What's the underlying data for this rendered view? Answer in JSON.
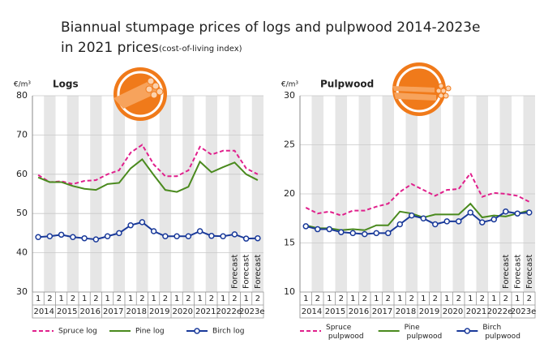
{
  "header": {
    "title": "Biannual stumpage prices of logs and pulpwood 2014-2023e",
    "title_line2": "in 2021 prices",
    "subtitle": "(cost-of-living index)"
  },
  "chart_data": [
    {
      "type": "line",
      "title": "Logs",
      "y_label": "€/m³",
      "categories": [
        "1",
        "2",
        "1",
        "2",
        "1",
        "2",
        "1",
        "2",
        "1",
        "2",
        "1",
        "2",
        "1",
        "2",
        "1",
        "2",
        "1",
        "2",
        "1",
        "2"
      ],
      "category_groups": [
        "2014",
        "2015",
        "2016",
        "2017",
        "2018",
        "2019",
        "2020",
        "2021",
        "2022e",
        "2023e"
      ],
      "category_notes": [
        null,
        null,
        null,
        null,
        null,
        null,
        null,
        null,
        null,
        null,
        null,
        null,
        null,
        null,
        null,
        null,
        null,
        "Forecast",
        "Forecast",
        "Forecast"
      ],
      "ylim": [
        30,
        80
      ],
      "yticks": [
        30,
        40,
        50,
        60,
        70,
        80
      ],
      "grid": true,
      "series": [
        {
          "name": "Spruce log",
          "color": "#e0208c",
          "style": "dashed",
          "values": [
            59.8,
            58.0,
            58.2,
            57.5,
            58.3,
            58.5,
            60.0,
            61.0,
            65.5,
            67.5,
            62.5,
            59.5,
            59.5,
            61.0,
            67.0,
            65.0,
            66.0,
            66.0,
            61.5,
            60.0
          ]
        },
        {
          "name": "Pine log",
          "color": "#4a8a1e",
          "style": "solid",
          "values": [
            59.2,
            58.0,
            58.0,
            57.0,
            56.3,
            56.0,
            57.5,
            57.8,
            61.5,
            63.8,
            59.8,
            56.0,
            55.5,
            56.8,
            63.2,
            60.5,
            61.8,
            63.0,
            60.0,
            58.5
          ]
        },
        {
          "name": "Birch log",
          "color": "#1a3a9a",
          "style": "markers",
          "values": [
            44.0,
            44.2,
            44.6,
            44.0,
            43.7,
            43.4,
            44.2,
            45.0,
            47.0,
            47.8,
            45.5,
            44.2,
            44.2,
            44.2,
            45.5,
            44.3,
            44.2,
            44.7,
            43.6,
            43.7
          ]
        }
      ]
    },
    {
      "type": "line",
      "title": "Pulpwood",
      "y_label": "€/m³",
      "categories": [
        "1",
        "2",
        "1",
        "2",
        "1",
        "2",
        "1",
        "2",
        "1",
        "2",
        "1",
        "2",
        "1",
        "2",
        "1",
        "2",
        "1",
        "2",
        "1",
        "2"
      ],
      "category_groups": [
        "2014",
        "2015",
        "2016",
        "2017",
        "2018",
        "2019",
        "2020",
        "2021",
        "2022e",
        "2023e"
      ],
      "category_notes": [
        null,
        null,
        null,
        null,
        null,
        null,
        null,
        null,
        null,
        null,
        null,
        null,
        null,
        null,
        null,
        null,
        null,
        "Forecast",
        "Forecast",
        "Forecast"
      ],
      "ylim": [
        10,
        30
      ],
      "yticks": [
        10,
        15,
        20,
        25,
        30
      ],
      "grid": true,
      "series": [
        {
          "name": "Spruce pulpwood",
          "color": "#e0208c",
          "style": "dashed",
          "values": [
            18.6,
            18.0,
            18.2,
            17.8,
            18.3,
            18.3,
            18.7,
            19.0,
            20.2,
            21.0,
            20.4,
            19.8,
            20.4,
            20.5,
            22.1,
            19.7,
            20.1,
            20.0,
            19.8,
            19.2
          ]
        },
        {
          "name": "Pine pulpwood",
          "color": "#4a8a1e",
          "style": "solid",
          "values": [
            16.8,
            16.5,
            16.5,
            16.3,
            16.4,
            16.3,
            16.8,
            16.8,
            18.2,
            18.0,
            17.6,
            17.9,
            17.9,
            17.9,
            19.0,
            17.6,
            17.8,
            17.7,
            18.0,
            18.3
          ]
        },
        {
          "name": "Birch pulpwood",
          "color": "#1a3a9a",
          "style": "markers",
          "values": [
            16.7,
            16.4,
            16.4,
            16.1,
            16.0,
            15.9,
            16.0,
            16.0,
            16.9,
            17.8,
            17.5,
            16.9,
            17.2,
            17.2,
            18.1,
            17.1,
            17.4,
            18.2,
            18.0,
            18.1
          ]
        }
      ]
    }
  ]
}
